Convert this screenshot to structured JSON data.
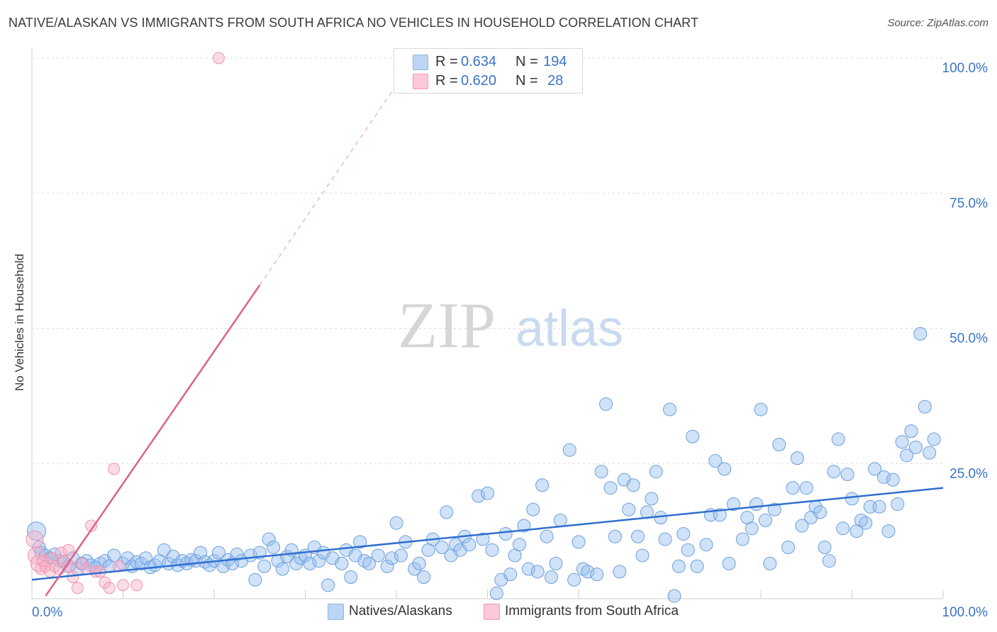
{
  "header": {
    "title": "NATIVE/ALASKAN VS IMMIGRANTS FROM SOUTH AFRICA NO VEHICLES IN HOUSEHOLD CORRELATION CHART",
    "source": "Source: ZipAtlas.com"
  },
  "watermark": {
    "zip": "ZIP",
    "atlas": "atlas"
  },
  "legend": {
    "rows": [
      {
        "r_label": "R = ",
        "r_value": "0.634",
        "n_label": "N = ",
        "n_value": "194",
        "color": "#a9c8f0"
      },
      {
        "r_label": "R = ",
        "r_value": "0.620",
        "n_label": "N = ",
        "n_value": "28",
        "color": "#f7b9cb"
      }
    ]
  },
  "bottom_legend": {
    "natives": "Natives/Alaskans",
    "immigrants": "Immigrants from South Africa"
  },
  "chart_data": {
    "type": "scatter",
    "title": "NATIVE/ALASKAN VS IMMIGRANTS FROM SOUTH AFRICA NO VEHICLES IN HOUSEHOLD CORRELATION CHART",
    "xlabel": "",
    "ylabel": "No Vehicles in Household",
    "xlim": [
      0,
      100
    ],
    "ylim": [
      0,
      100
    ],
    "x_tick_labels": {
      "left": "0.0%",
      "right": "100.0%"
    },
    "y_ticks": [
      {
        "value": 25,
        "label": "25.0%"
      },
      {
        "value": 50,
        "label": "50.0%"
      },
      {
        "value": 75,
        "label": "75.0%"
      },
      {
        "value": 100,
        "label": "100.0%"
      }
    ],
    "grid": true,
    "legend_position": "top-center",
    "colors": {
      "natives": "#6a9fdd",
      "natives_line": "#2f6fcf",
      "immigrants": "#f093b0",
      "immigrants_line": "#e0608a"
    },
    "series": [
      {
        "name": "Natives/Alaskans",
        "r": 0.634,
        "n": 194,
        "trend": {
          "x": [
            0,
            100
          ],
          "y": [
            3.5,
            20.5
          ]
        },
        "points": [
          [
            0.5,
            12.5
          ],
          [
            0.8,
            9.5
          ],
          [
            1.0,
            8.5
          ],
          [
            1.5,
            8.0
          ],
          [
            2.0,
            7.5
          ],
          [
            2.5,
            8.2
          ],
          [
            3.0,
            7.0
          ],
          [
            3.5,
            6.8
          ],
          [
            4.0,
            6.0
          ],
          [
            4.5,
            7.5
          ],
          [
            5.0,
            5.5
          ],
          [
            5.5,
            6.5
          ],
          [
            6.0,
            7.0
          ],
          [
            6.5,
            6.2
          ],
          [
            7.0,
            5.8
          ],
          [
            7.5,
            6.5
          ],
          [
            8.0,
            7.0
          ],
          [
            8.5,
            6.0
          ],
          [
            9.0,
            8.0
          ],
          [
            10.0,
            6.5
          ],
          [
            10.5,
            7.5
          ],
          [
            11.0,
            6.0
          ],
          [
            11.5,
            6.8
          ],
          [
            12.0,
            6.5
          ],
          [
            12.5,
            7.5
          ],
          [
            13.0,
            5.8
          ],
          [
            13.5,
            6.2
          ],
          [
            14.0,
            7.0
          ],
          [
            14.5,
            9.0
          ],
          [
            15.0,
            6.5
          ],
          [
            15.5,
            7.8
          ],
          [
            16.0,
            6.2
          ],
          [
            16.5,
            7.0
          ],
          [
            17.0,
            6.5
          ],
          [
            17.5,
            7.2
          ],
          [
            18.0,
            7.0
          ],
          [
            18.5,
            8.5
          ],
          [
            19.0,
            6.8
          ],
          [
            19.5,
            6.2
          ],
          [
            20.0,
            7.0
          ],
          [
            20.5,
            8.5
          ],
          [
            21.0,
            6.0
          ],
          [
            21.5,
            7.2
          ],
          [
            22.0,
            6.5
          ],
          [
            22.5,
            8.2
          ],
          [
            23.0,
            7.0
          ],
          [
            24.0,
            8.0
          ],
          [
            24.5,
            3.5
          ],
          [
            25.0,
            8.5
          ],
          [
            25.5,
            6.0
          ],
          [
            26.0,
            11.0
          ],
          [
            26.5,
            9.5
          ],
          [
            27.0,
            7.0
          ],
          [
            27.5,
            5.5
          ],
          [
            28.0,
            7.8
          ],
          [
            28.5,
            9.0
          ],
          [
            29.0,
            6.5
          ],
          [
            29.5,
            7.5
          ],
          [
            30.0,
            8.0
          ],
          [
            30.5,
            6.5
          ],
          [
            31.0,
            9.5
          ],
          [
            31.5,
            7.0
          ],
          [
            32.0,
            8.5
          ],
          [
            32.5,
            2.5
          ],
          [
            33.0,
            7.5
          ],
          [
            34.0,
            6.5
          ],
          [
            34.5,
            9.0
          ],
          [
            35.0,
            4.0
          ],
          [
            35.5,
            8.0
          ],
          [
            36.0,
            10.5
          ],
          [
            36.5,
            7.0
          ],
          [
            37.0,
            6.5
          ],
          [
            38.0,
            8.0
          ],
          [
            39.0,
            6.0
          ],
          [
            39.5,
            7.5
          ],
          [
            40.0,
            14.0
          ],
          [
            40.5,
            8.0
          ],
          [
            41.0,
            10.5
          ],
          [
            42.0,
            5.5
          ],
          [
            42.5,
            6.5
          ],
          [
            43.0,
            4.0
          ],
          [
            43.5,
            9.0
          ],
          [
            44.0,
            11.0
          ],
          [
            45.0,
            9.5
          ],
          [
            45.5,
            16.0
          ],
          [
            46.0,
            8.0
          ],
          [
            46.5,
            10.0
          ],
          [
            47.0,
            9.0
          ],
          [
            47.5,
            11.5
          ],
          [
            48.0,
            10.0
          ],
          [
            49.0,
            19.0
          ],
          [
            49.5,
            11.0
          ],
          [
            50.0,
            19.5
          ],
          [
            50.5,
            9.0
          ],
          [
            51.0,
            1.0
          ],
          [
            51.5,
            3.5
          ],
          [
            52.0,
            12.0
          ],
          [
            52.5,
            4.5
          ],
          [
            53.0,
            8.0
          ],
          [
            53.5,
            10.0
          ],
          [
            54.0,
            13.5
          ],
          [
            54.5,
            5.5
          ],
          [
            55.0,
            16.5
          ],
          [
            55.5,
            5.0
          ],
          [
            56.0,
            21.0
          ],
          [
            56.5,
            11.5
          ],
          [
            57.0,
            4.0
          ],
          [
            57.5,
            6.5
          ],
          [
            58.0,
            14.5
          ],
          [
            59.0,
            27.5
          ],
          [
            59.5,
            3.5
          ],
          [
            60.0,
            10.5
          ],
          [
            60.5,
            5.5
          ],
          [
            61.0,
            5.0
          ],
          [
            62.0,
            4.5
          ],
          [
            62.5,
            23.5
          ],
          [
            63.0,
            36.0
          ],
          [
            63.5,
            20.5
          ],
          [
            64.0,
            11.5
          ],
          [
            64.5,
            5.0
          ],
          [
            65.0,
            22.0
          ],
          [
            65.5,
            16.5
          ],
          [
            66.0,
            21.0
          ],
          [
            66.5,
            11.5
          ],
          [
            67.0,
            8.0
          ],
          [
            67.5,
            16.0
          ],
          [
            68.0,
            18.5
          ],
          [
            68.5,
            23.5
          ],
          [
            69.0,
            15.0
          ],
          [
            69.5,
            11.0
          ],
          [
            70.0,
            35.0
          ],
          [
            70.5,
            0.5
          ],
          [
            71.0,
            6.0
          ],
          [
            71.5,
            12.0
          ],
          [
            72.0,
            9.0
          ],
          [
            72.5,
            30.0
          ],
          [
            73.0,
            6.0
          ],
          [
            74.0,
            10.0
          ],
          [
            74.5,
            15.5
          ],
          [
            75.0,
            25.5
          ],
          [
            75.5,
            15.5
          ],
          [
            76.0,
            24.0
          ],
          [
            76.5,
            6.5
          ],
          [
            77.0,
            17.5
          ],
          [
            78.0,
            11.0
          ],
          [
            78.5,
            15.0
          ],
          [
            79.0,
            13.0
          ],
          [
            79.5,
            17.5
          ],
          [
            80.0,
            35.0
          ],
          [
            80.5,
            14.5
          ],
          [
            81.0,
            6.5
          ],
          [
            81.5,
            16.5
          ],
          [
            82.0,
            28.5
          ],
          [
            83.0,
            9.5
          ],
          [
            83.5,
            20.5
          ],
          [
            84.0,
            26.0
          ],
          [
            84.5,
            13.5
          ],
          [
            85.0,
            20.5
          ],
          [
            85.5,
            15.0
          ],
          [
            86.0,
            17.0
          ],
          [
            86.5,
            16.0
          ],
          [
            87.0,
            9.5
          ],
          [
            87.5,
            7.0
          ],
          [
            88.0,
            23.5
          ],
          [
            88.5,
            29.5
          ],
          [
            89.0,
            13.0
          ],
          [
            89.5,
            23.0
          ],
          [
            90.0,
            18.5
          ],
          [
            90.5,
            12.5
          ],
          [
            91.0,
            14.5
          ],
          [
            91.5,
            14.0
          ],
          [
            92.0,
            17.0
          ],
          [
            92.5,
            24.0
          ],
          [
            93.0,
            17.0
          ],
          [
            93.5,
            22.5
          ],
          [
            94.0,
            12.5
          ],
          [
            94.5,
            22.0
          ],
          [
            95.0,
            17.5
          ],
          [
            95.5,
            29.0
          ],
          [
            96.0,
            26.5
          ],
          [
            96.5,
            31.0
          ],
          [
            97.0,
            28.0
          ],
          [
            97.5,
            49.0
          ],
          [
            98.0,
            35.5
          ],
          [
            98.5,
            27.0
          ],
          [
            99.0,
            29.5
          ]
        ]
      },
      {
        "name": "Immigrants from South Africa",
        "r": 0.62,
        "n": 28,
        "trend": {
          "x": [
            1.5,
            25.0
          ],
          "y": [
            0.5,
            58.0
          ]
        },
        "trend_dashed": {
          "x": [
            25.0,
            40.0
          ],
          "y": [
            58.0,
            95.0
          ]
        },
        "points": [
          [
            0.3,
            11.0
          ],
          [
            0.5,
            8.0
          ],
          [
            0.8,
            6.5
          ],
          [
            1.0,
            5.5
          ],
          [
            1.2,
            7.0
          ],
          [
            1.5,
            6.0
          ],
          [
            2.0,
            5.0
          ],
          [
            2.2,
            7.5
          ],
          [
            2.5,
            6.0
          ],
          [
            3.0,
            5.5
          ],
          [
            3.2,
            8.5
          ],
          [
            3.5,
            7.0
          ],
          [
            4.0,
            9.0
          ],
          [
            4.2,
            6.0
          ],
          [
            4.5,
            4.0
          ],
          [
            5.0,
            2.0
          ],
          [
            5.5,
            6.5
          ],
          [
            6.0,
            5.5
          ],
          [
            6.5,
            13.5
          ],
          [
            7.0,
            5.0
          ],
          [
            7.5,
            5.0
          ],
          [
            8.0,
            3.0
          ],
          [
            8.5,
            2.0
          ],
          [
            9.0,
            24.0
          ],
          [
            9.5,
            6.0
          ],
          [
            10.0,
            2.5
          ],
          [
            11.5,
            2.5
          ],
          [
            20.5,
            100.0
          ]
        ]
      }
    ]
  }
}
